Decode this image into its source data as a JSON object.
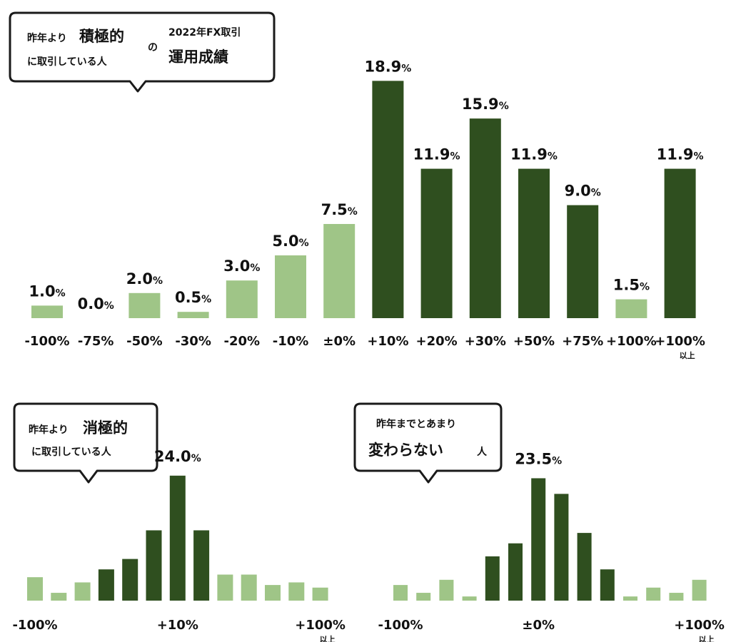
{
  "colors": {
    "light": "#9fc587",
    "dark": "#2f4f1f"
  },
  "percent_sign": "%",
  "bubbles": {
    "main": {
      "line1_a": "昨年より",
      "line1_b": "積極的",
      "line2": "に取引している人",
      "no": "の",
      "title_small": "2022年FX取引",
      "title_big": "運用成績"
    },
    "passive": {
      "line1_a": "昨年より",
      "line1_b": "消極的",
      "line2": "に取引している人"
    },
    "same": {
      "line1": "昨年までとあまり",
      "line2_a": "変わらない",
      "line2_b": "人"
    }
  },
  "chart_data": [
    {
      "type": "bar",
      "group": "昨年より積極的に取引している人",
      "categories": [
        "-100%",
        "-75%",
        "-50%",
        "-30%",
        "-20%",
        "-10%",
        "±0%",
        "+10%",
        "+20%",
        "+30%",
        "+50%",
        "+75%",
        "+100%",
        "+100%"
      ],
      "category_sub": [
        "",
        "",
        "",
        "",
        "",
        "",
        "",
        "",
        "",
        "",
        "",
        "",
        "",
        "以上"
      ],
      "values": [
        1.0,
        0.0,
        2.0,
        0.5,
        3.0,
        5.0,
        7.5,
        18.9,
        11.9,
        15.9,
        11.9,
        9.0,
        1.5,
        11.9
      ],
      "value_labels": [
        "1.0",
        "0.0",
        "2.0",
        "0.5",
        "3.0",
        "5.0",
        "7.5",
        "18.9",
        "11.9",
        "15.9",
        "11.9",
        "9.0",
        "1.5",
        "11.9"
      ],
      "shade": [
        "light",
        "light",
        "light",
        "light",
        "light",
        "light",
        "light",
        "dark",
        "dark",
        "dark",
        "dark",
        "dark",
        "light",
        "dark"
      ]
    },
    {
      "type": "bar",
      "group": "昨年より消極的に取引している人",
      "values": [
        4.5,
        1.5,
        3.5,
        6.0,
        8.0,
        13.5,
        24.0,
        13.5,
        5.0,
        5.0,
        3.0,
        3.5,
        2.5
      ],
      "peak_label": "24.0",
      "peak_index": 6,
      "shade": [
        "light",
        "light",
        "light",
        "dark",
        "dark",
        "dark",
        "dark",
        "dark",
        "light",
        "light",
        "light",
        "light",
        "light"
      ],
      "ticks": [
        {
          "index": 0,
          "label": "-100%",
          "sub": ""
        },
        {
          "index": 6,
          "label": "+10%",
          "sub": ""
        },
        {
          "index": 12,
          "label": "+100%",
          "sub": "以上"
        }
      ]
    },
    {
      "type": "bar",
      "group": "昨年までとあまり変わらない人",
      "values": [
        3.0,
        1.5,
        4.0,
        0.8,
        8.5,
        11.0,
        23.5,
        20.5,
        13.0,
        6.0,
        0.8,
        2.5,
        1.5,
        4.0
      ],
      "peak_label": "23.5",
      "peak_index": 6,
      "shade": [
        "light",
        "light",
        "light",
        "light",
        "dark",
        "dark",
        "dark",
        "dark",
        "dark",
        "dark",
        "light",
        "light",
        "light",
        "light"
      ],
      "ticks": [
        {
          "index": 0,
          "label": "-100%",
          "sub": ""
        },
        {
          "index": 6,
          "label": "±0%",
          "sub": ""
        },
        {
          "index": 13,
          "label": "+100%",
          "sub": "以上"
        }
      ]
    }
  ]
}
